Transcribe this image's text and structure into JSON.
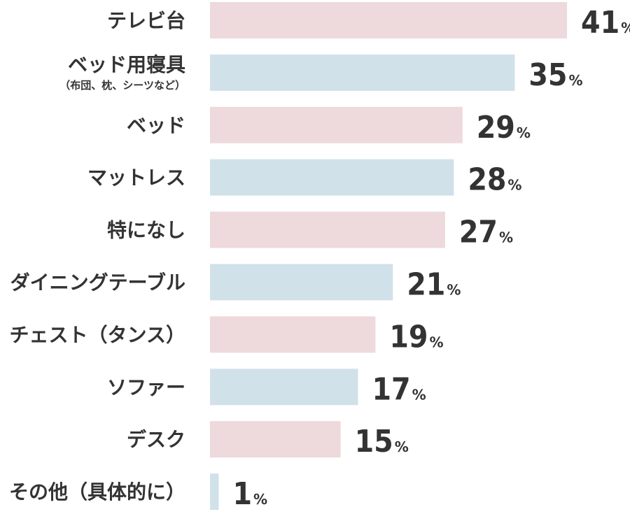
{
  "chart_data": {
    "type": "bar",
    "orientation": "horizontal",
    "title": "",
    "xlabel": "",
    "ylabel": "",
    "unit": "%",
    "xlim": [
      0,
      41
    ],
    "grid": false,
    "legend": "none",
    "categories": [
      {
        "label": "テレビ台",
        "sublabel": ""
      },
      {
        "label": "ベッド用寝具",
        "sublabel": "（布団、枕、シーツなど）"
      },
      {
        "label": "ベッド",
        "sublabel": ""
      },
      {
        "label": "マットレス",
        "sublabel": ""
      },
      {
        "label": "特になし",
        "sublabel": ""
      },
      {
        "label": "ダイニングテーブル",
        "sublabel": ""
      },
      {
        "label": "チェスト（タンス）",
        "sublabel": ""
      },
      {
        "label": "ソファー",
        "sublabel": ""
      },
      {
        "label": "デスク",
        "sublabel": ""
      },
      {
        "label": "その他（具体的に）",
        "sublabel": ""
      }
    ],
    "values": [
      41,
      35,
      29,
      28,
      27,
      21,
      19,
      17,
      15,
      1
    ],
    "colors": [
      "#eed9dc",
      "#d1e1ea"
    ]
  }
}
